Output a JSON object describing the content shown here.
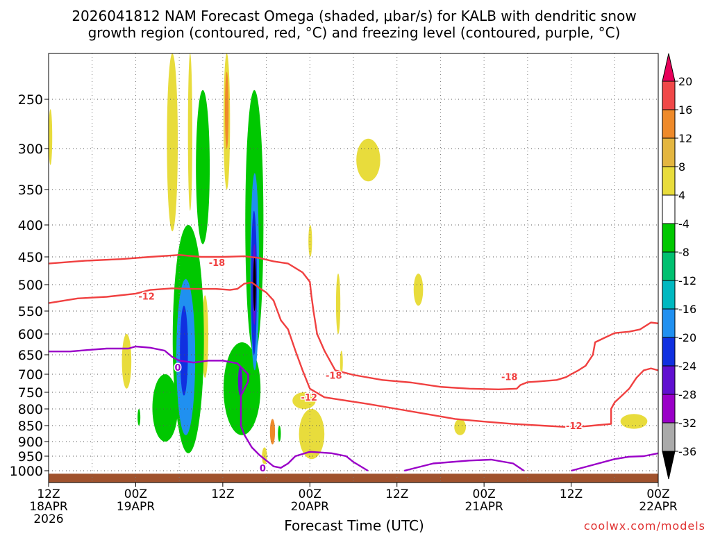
{
  "title_line1": "2026041812 NAM Forecast Omega (shaded, μbar/s) for KALB with dendritic snow",
  "title_line2": "growth region (contoured, red, °C) and freezing level (contoured, purple, °C)",
  "credit": "coolwx.com/models",
  "colors": {
    "terrain": "#a0522d",
    "dgz_contour": "#f04040",
    "freezing_contour": "#9a00c8",
    "grid": "#888888"
  },
  "chart_data": {
    "type": "heatmap",
    "title": "2026041812 NAM Forecast Omega (shaded, μbar/s) for KALB with dendritic snow growth region (contoured, red, °C) and freezing level (contoured, purple, °C)",
    "xlabel": "Forecast Time (UTC)",
    "ylabel": "",
    "x_unit": "hours after 2026-04-18 12Z",
    "xlim": [
      0,
      84
    ],
    "y_unit": "hPa",
    "ylim": [
      1020,
      200
    ],
    "x_ticks": [
      {
        "x": 0,
        "l1": "12Z",
        "l2": "18APR",
        "l3": "2026"
      },
      {
        "x": 12,
        "l1": "00Z",
        "l2": "19APR",
        "l3": ""
      },
      {
        "x": 24,
        "l1": "12Z",
        "l2": "",
        "l3": ""
      },
      {
        "x": 36,
        "l1": "00Z",
        "l2": "20APR",
        "l3": ""
      },
      {
        "x": 48,
        "l1": "12Z",
        "l2": "",
        "l3": ""
      },
      {
        "x": 60,
        "l1": "00Z",
        "l2": "21APR",
        "l3": ""
      },
      {
        "x": 72,
        "l1": "12Z",
        "l2": "",
        "l3": ""
      },
      {
        "x": 84,
        "l1": "00Z",
        "l2": "22APR",
        "l3": ""
      }
    ],
    "y_ticks": [
      250,
      300,
      350,
      400,
      450,
      500,
      550,
      600,
      650,
      700,
      750,
      800,
      850,
      900,
      950,
      1000
    ],
    "grid": true,
    "colorbar": {
      "position": "right",
      "labels": [
        20,
        16,
        12,
        8,
        4,
        -4,
        -8,
        -12,
        -16,
        -20,
        -24,
        -28,
        -32,
        -36
      ],
      "bins": [
        {
          "color": "#e8005a"
        },
        {
          "color": "#f04848"
        },
        {
          "color": "#ee8a2a"
        },
        {
          "color": "#e4b640"
        },
        {
          "color": "#e8dc3c"
        },
        {
          "color": "#ffffff"
        },
        {
          "color": "#00c800"
        },
        {
          "color": "#00c070"
        },
        {
          "color": "#00b8c0"
        },
        {
          "color": "#2090f0"
        },
        {
          "color": "#1030e0"
        },
        {
          "color": "#6010d0"
        },
        {
          "color": "#9a00c8"
        },
        {
          "color": "#aaaaaa"
        },
        {
          "color": "#000000"
        }
      ]
    },
    "contours": [
      {
        "kind": "dgz",
        "level": -18,
        "color": "#f04040",
        "points": [
          [
            0,
            462
          ],
          [
            5,
            457
          ],
          [
            10,
            454
          ],
          [
            14,
            450
          ],
          [
            18,
            447
          ],
          [
            21,
            450
          ],
          [
            24,
            450
          ],
          [
            27,
            449
          ],
          [
            29,
            452
          ],
          [
            31,
            458
          ],
          [
            33,
            462
          ],
          [
            34,
            470
          ],
          [
            35,
            478
          ],
          [
            36,
            495
          ],
          [
            36.2,
            520
          ],
          [
            36.5,
            550
          ],
          [
            37,
            600
          ],
          [
            38,
            640
          ],
          [
            39.5,
            690
          ],
          [
            42,
            702
          ],
          [
            46,
            716
          ],
          [
            50,
            723
          ],
          [
            54,
            735
          ],
          [
            58,
            740
          ],
          [
            62,
            742
          ],
          [
            64.5,
            740
          ],
          [
            65,
            730
          ],
          [
            66,
            722
          ],
          [
            67.5,
            720
          ],
          [
            70,
            716
          ],
          [
            71.3,
            708
          ],
          [
            72,
            700
          ],
          [
            73,
            690
          ],
          [
            74,
            678
          ],
          [
            75,
            650
          ],
          [
            75.3,
            620
          ],
          [
            76.5,
            610
          ],
          [
            78,
            598
          ],
          [
            80,
            595
          ],
          [
            81.5,
            590
          ],
          [
            83,
            575
          ],
          [
            84,
            577
          ]
        ]
      },
      {
        "kind": "dgz",
        "level": -12,
        "color": "#f04040",
        "points": [
          [
            0,
            535
          ],
          [
            4,
            526
          ],
          [
            8,
            523
          ],
          [
            12,
            517
          ],
          [
            14,
            510
          ],
          [
            17,
            507
          ],
          [
            20,
            508
          ],
          [
            23,
            508
          ],
          [
            25,
            510
          ],
          [
            26,
            508
          ],
          [
            27,
            498
          ],
          [
            28,
            496
          ],
          [
            29,
            506
          ],
          [
            30,
            515
          ],
          [
            31,
            530
          ],
          [
            32,
            570
          ],
          [
            33,
            590
          ],
          [
            34,
            640
          ],
          [
            35,
            690
          ],
          [
            36,
            740
          ],
          [
            38,
            765
          ],
          [
            44,
            785
          ],
          [
            48,
            800
          ],
          [
            52,
            815
          ],
          [
            56,
            830
          ],
          [
            60,
            838
          ],
          [
            64,
            845
          ],
          [
            68,
            850
          ],
          [
            72,
            855
          ],
          [
            74,
            852
          ],
          [
            76,
            848
          ],
          [
            77.5,
            845
          ],
          [
            77.5,
            800
          ],
          [
            78,
            780
          ],
          [
            79,
            760
          ],
          [
            80,
            740
          ],
          [
            81,
            710
          ],
          [
            82,
            690
          ],
          [
            83,
            685
          ],
          [
            84,
            690
          ]
        ]
      },
      {
        "kind": "freezing",
        "level": 0,
        "color": "#9a00c8",
        "points": [
          [
            0,
            642
          ],
          [
            3,
            642
          ],
          [
            5,
            639
          ],
          [
            8,
            635
          ],
          [
            11,
            635
          ],
          [
            12,
            630
          ],
          [
            14,
            633
          ],
          [
            16,
            640
          ],
          [
            17,
            655
          ],
          [
            18,
            665
          ],
          [
            20,
            670
          ],
          [
            22,
            665
          ],
          [
            24,
            665
          ],
          [
            26,
            672
          ],
          [
            27.5,
            700
          ],
          [
            27.5,
            720
          ],
          [
            26.5,
            760
          ],
          [
            26.5,
            820
          ],
          [
            26.5,
            850
          ],
          [
            27,
            880
          ],
          [
            28,
            920
          ],
          [
            29,
            945
          ],
          [
            30.5,
            975
          ],
          [
            31,
            985
          ],
          [
            32,
            990
          ],
          [
            33,
            975
          ],
          [
            34,
            950
          ],
          [
            36,
            935
          ],
          [
            39,
            940
          ],
          [
            41,
            950
          ],
          [
            42,
            970
          ],
          [
            44,
            1000
          ]
        ]
      },
      {
        "kind": "freezing",
        "level": 0,
        "color": "#9a00c8",
        "points": [
          [
            49,
            1000
          ],
          [
            53,
            975
          ],
          [
            58,
            965
          ],
          [
            61,
            962
          ],
          [
            64,
            975
          ],
          [
            65.5,
            1000
          ]
        ]
      },
      {
        "kind": "freezing",
        "level": 0,
        "color": "#9a00c8",
        "points": [
          [
            72,
            1000
          ],
          [
            75,
            980
          ],
          [
            78,
            960
          ],
          [
            80,
            952
          ],
          [
            82,
            950
          ],
          [
            84,
            940
          ]
        ]
      }
    ],
    "contour_labels": [
      {
        "text": "-18",
        "x": 23.2,
        "y": 460,
        "color": "#f04040"
      },
      {
        "text": "-12",
        "x": 13.5,
        "y": 522,
        "color": "#f04040"
      },
      {
        "text": "-18",
        "x": 39.3,
        "y": 703,
        "color": "#f04040"
      },
      {
        "text": "-12",
        "x": 35.9,
        "y": 765,
        "color": "#f04040"
      },
      {
        "text": "-18",
        "x": 63.5,
        "y": 707,
        "color": "#f04040"
      },
      {
        "text": "-12",
        "x": 72.4,
        "y": 850,
        "color": "#f04040"
      },
      {
        "text": "0",
        "x": 17.8,
        "y": 682,
        "color": "#9a00c8"
      },
      {
        "text": "0",
        "x": 29.5,
        "y": 990,
        "color": "#9a00c8"
      }
    ],
    "omega_features": [
      {
        "label": 4,
        "x": [
          16.3,
          17.8
        ],
        "y": [
          155,
          410
        ],
        "color": "#e8dc3c"
      },
      {
        "label": 4,
        "x": [
          19.2,
          19.8
        ],
        "y": [
          160,
          380
        ],
        "color": "#e8dc3c"
      },
      {
        "label": 4,
        "x": [
          24.1,
          25.0
        ],
        "y": [
          180,
          350
        ],
        "color": "#e8dc3c"
      },
      {
        "label": 12,
        "x": [
          24.3,
          24.8
        ],
        "y": [
          220,
          300
        ],
        "color": "#ee8a2a"
      },
      {
        "label": 4,
        "x": [
          0,
          0.5
        ],
        "y": [
          260,
          320
        ],
        "color": "#e8dc3c"
      },
      {
        "label": 4,
        "x": [
          42.4,
          45.7
        ],
        "y": [
          290,
          340
        ],
        "color": "#e8dc3c"
      },
      {
        "label": 4,
        "x": [
          35.8,
          36.3
        ],
        "y": [
          400,
          450
        ],
        "color": "#e8dc3c"
      },
      {
        "label": 4,
        "x": [
          50.3,
          51.6
        ],
        "y": [
          480,
          540
        ],
        "color": "#e8dc3c"
      },
      {
        "label": 4,
        "x": [
          39.6,
          40.2
        ],
        "y": [
          480,
          600
        ],
        "color": "#e8dc3c"
      },
      {
        "label": 4,
        "x": [
          10.1,
          11.4
        ],
        "y": [
          600,
          740
        ],
        "color": "#e8dc3c"
      },
      {
        "label": 4,
        "x": [
          21.1,
          22.0
        ],
        "y": [
          520,
          710
        ],
        "color": "#e8dc3c"
      },
      {
        "label": 4,
        "x": [
          40.2,
          40.5
        ],
        "y": [
          640,
          700
        ],
        "color": "#e8dc3c"
      },
      {
        "label": 4,
        "x": [
          33.6,
          36.8
        ],
        "y": [
          750,
          800
        ],
        "color": "#e8dc3c"
      },
      {
        "label": 4,
        "x": [
          34.5,
          38.0
        ],
        "y": [
          800,
          960
        ],
        "color": "#e8dc3c"
      },
      {
        "label": 4,
        "x": [
          55.9,
          57.5
        ],
        "y": [
          830,
          880
        ],
        "color": "#e8dc3c"
      },
      {
        "label": 4,
        "x": [
          78.8,
          82.5
        ],
        "y": [
          815,
          860
        ],
        "color": "#e8dc3c"
      },
      {
        "label": 4,
        "x": [
          29.4,
          30.1
        ],
        "y": [
          920,
          980
        ],
        "color": "#e8dc3c"
      },
      {
        "label": 12,
        "x": [
          30.5,
          31.2
        ],
        "y": [
          830,
          910
        ],
        "color": "#ee8a2a"
      },
      {
        "label": -8,
        "x": [
          20.3,
          22.2
        ],
        "y": [
          240,
          430
        ],
        "color": "#00c800"
      },
      {
        "label": -8,
        "x": [
          27.1,
          29.6
        ],
        "y": [
          240,
          650
        ],
        "color": "#00c800"
      },
      {
        "label": -8,
        "x": [
          17.1,
          21.4
        ],
        "y": [
          400,
          940
        ],
        "color": "#00c800"
      },
      {
        "label": -8,
        "x": [
          14.3,
          17.8
        ],
        "y": [
          700,
          900
        ],
        "color": "#00c800"
      },
      {
        "label": -8,
        "x": [
          24.1,
          29.2
        ],
        "y": [
          620,
          880
        ],
        "color": "#00c800"
      },
      {
        "label": -8,
        "x": [
          12.3,
          12.6
        ],
        "y": [
          800,
          850
        ],
        "color": "#00c800"
      },
      {
        "label": -8,
        "x": [
          31.6,
          32.0
        ],
        "y": [
          850,
          900
        ],
        "color": "#00c800"
      },
      {
        "label": -16,
        "x": [
          17.6,
          20.2
        ],
        "y": [
          490,
          880
        ],
        "color": "#2090f0"
      },
      {
        "label": -16,
        "x": [
          27.8,
          29.0
        ],
        "y": [
          330,
          690
        ],
        "color": "#2090f0"
      },
      {
        "label": -24,
        "x": [
          18.1,
          19.2
        ],
        "y": [
          540,
          760
        ],
        "color": "#1030e0"
      },
      {
        "label": -24,
        "x": [
          27.9,
          28.7
        ],
        "y": [
          380,
          650
        ],
        "color": "#1030e0"
      },
      {
        "label": -28,
        "x": [
          28.1,
          28.6
        ],
        "y": [
          430,
          580
        ],
        "color": "#6010d0"
      },
      {
        "label": -36,
        "x": [
          28.3,
          28.45
        ],
        "y": [
          450,
          550
        ],
        "color": "#000000"
      },
      {
        "label": -24,
        "x": [
          26.1,
          26.7
        ],
        "y": [
          680,
          760
        ],
        "color": "#6010d0"
      }
    ],
    "terrain_top_hPa": 1005
  }
}
